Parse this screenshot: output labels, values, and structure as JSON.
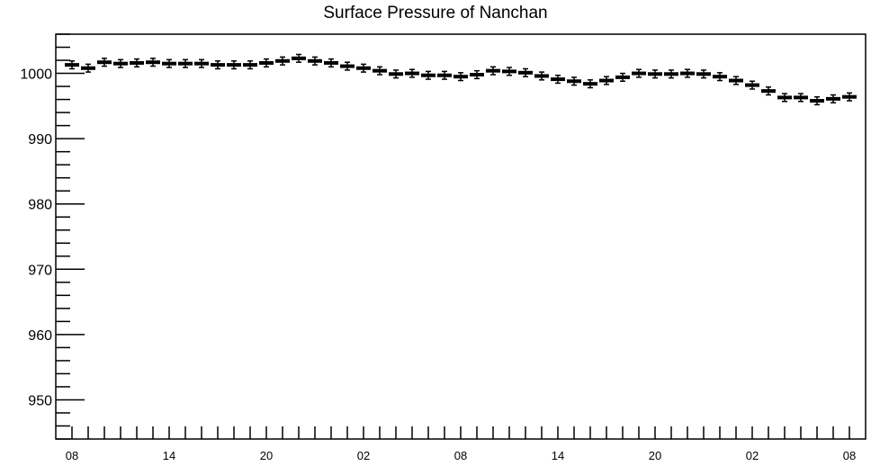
{
  "chart_data": {
    "type": "scatter",
    "title": "Surface Pressure of Nanchan",
    "xlabel": "",
    "ylabel": "",
    "ylim": [
      944,
      1006
    ],
    "yticks": [
      950,
      960,
      970,
      980,
      990,
      1000
    ],
    "xtick_labels": [
      "08",
      "14",
      "20",
      "02",
      "08",
      "14",
      "20",
      "02",
      "08"
    ],
    "x_interval_hours": 1,
    "grid": false,
    "series": [
      {
        "values": [
          1001.3,
          1000.8,
          1001.7,
          1001.5,
          1001.6,
          1001.7,
          1001.5,
          1001.5,
          1001.5,
          1001.3,
          1001.3,
          1001.3,
          1001.6,
          1001.9,
          1002.3,
          1001.9,
          1001.6,
          1001.1,
          1000.8,
          1000.4,
          999.9,
          1000.0,
          999.7,
          999.7,
          999.5,
          999.8,
          1000.4,
          1000.3,
          1000.1,
          999.6,
          999.1,
          998.8,
          998.4,
          998.9,
          999.4,
          1000.0,
          999.9,
          999.9,
          1000.0,
          999.9,
          999.5,
          998.9,
          998.2,
          997.3,
          996.3,
          996.3,
          995.8,
          996.1,
          996.4
        ],
        "error": [
          0.6,
          0.6,
          0.6,
          0.6,
          0.6,
          0.6,
          0.6,
          0.6,
          0.6,
          0.6,
          0.6,
          0.6,
          0.6,
          0.6,
          0.6,
          0.6,
          0.6,
          0.6,
          0.6,
          0.6,
          0.6,
          0.6,
          0.6,
          0.6,
          0.6,
          0.6,
          0.6,
          0.6,
          0.6,
          0.6,
          0.6,
          0.6,
          0.6,
          0.6,
          0.6,
          0.6,
          0.6,
          0.6,
          0.6,
          0.6,
          0.6,
          0.6,
          0.6,
          0.6,
          0.6,
          0.6,
          0.6,
          0.6,
          0.6
        ]
      }
    ]
  }
}
